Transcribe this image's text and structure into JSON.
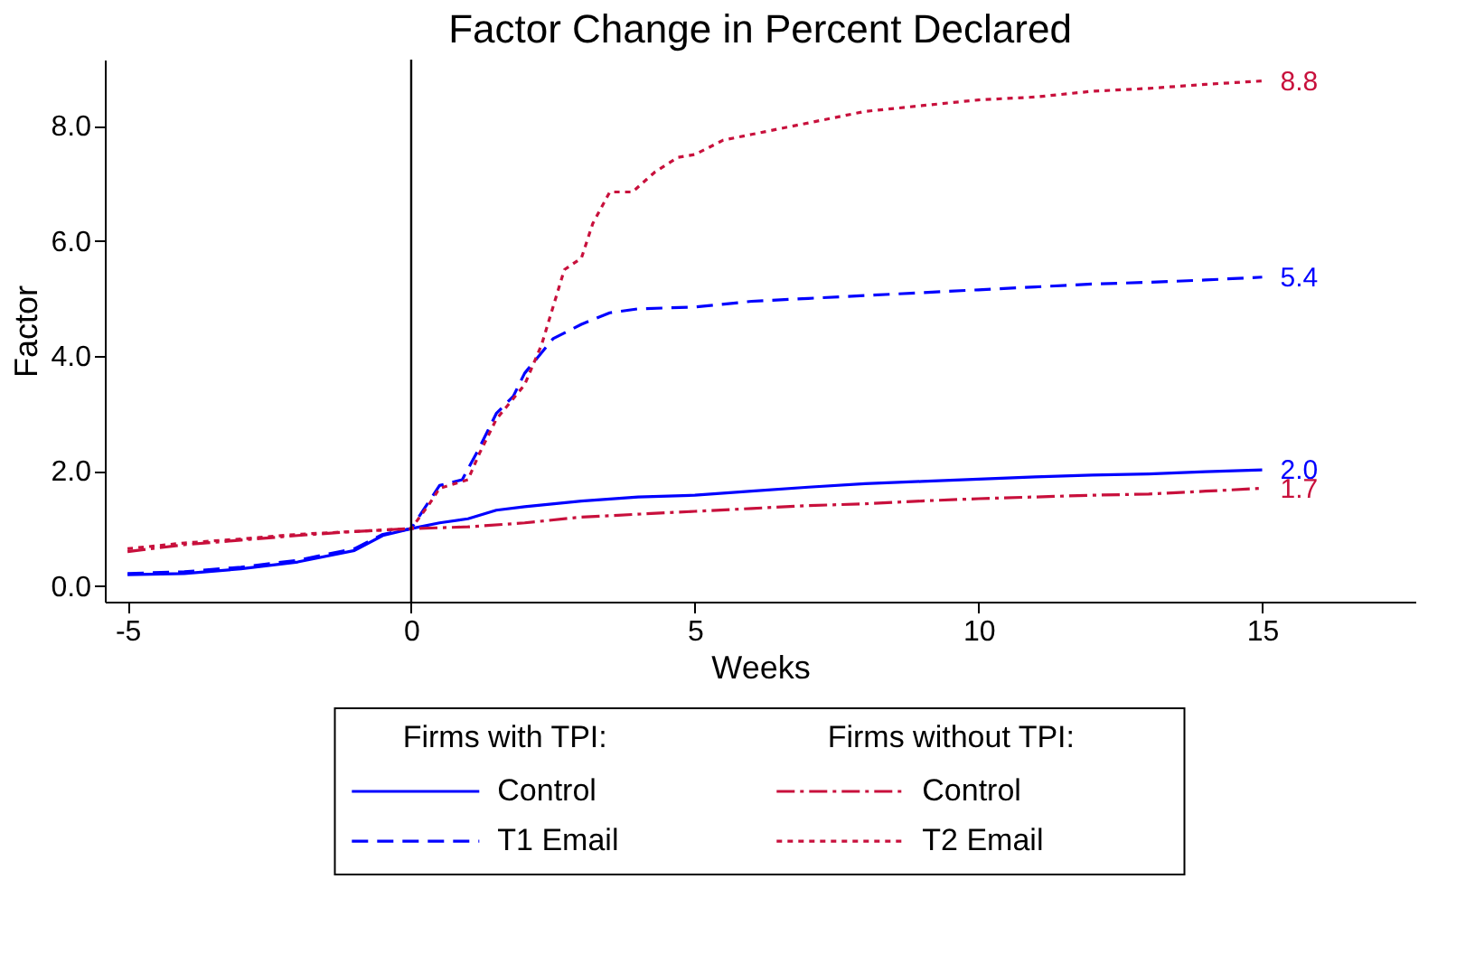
{
  "chart_data": {
    "type": "line",
    "title": "Factor Change in Percent Declared",
    "xlabel": "Weeks",
    "ylabel": "Factor",
    "xlim": [
      -5.4,
      17.7
    ],
    "ylim": [
      -0.27,
      9.15
    ],
    "xticks": [
      -5,
      0,
      5,
      10,
      15
    ],
    "yticks": [
      {
        "value": 0,
        "label": "0.0"
      },
      {
        "value": 2,
        "label": "2.0"
      },
      {
        "value": 4,
        "label": "4.0"
      },
      {
        "value": 6,
        "label": "6.0"
      },
      {
        "value": 8,
        "label": "8.0"
      }
    ],
    "grid": false,
    "legend": "bottom",
    "annotations": [
      "Firms with TPI:",
      "Firms without TPI:"
    ],
    "ref_lines": [
      {
        "axis": "x",
        "value": 0,
        "label": null,
        "color": "#000000",
        "line_style": "solid"
      }
    ],
    "series": [
      {
        "name": "Control",
        "color": "#0000ff",
        "line_style": "solid",
        "x": [
          -5,
          -4,
          -3,
          -2,
          -1,
          -0.5,
          0,
          0.5,
          1,
          1.5,
          2,
          3,
          4,
          5,
          6,
          7,
          8,
          9,
          10,
          11,
          12,
          13,
          14,
          15
        ],
        "values": [
          0.2,
          0.22,
          0.3,
          0.42,
          0.62,
          0.88,
          1.0,
          1.1,
          1.17,
          1.32,
          1.38,
          1.48,
          1.55,
          1.58,
          1.65,
          1.72,
          1.78,
          1.82,
          1.86,
          1.9,
          1.93,
          1.95,
          1.99,
          2.02
        ],
        "value_labels": [
          null,
          null,
          null,
          null,
          null,
          null,
          null,
          null,
          null,
          null,
          null,
          null,
          null,
          null,
          null,
          null,
          null,
          null,
          null,
          null,
          null,
          null,
          null,
          "2.0"
        ]
      },
      {
        "name": "T1 Email",
        "color": "#0000ff",
        "line_style": "dashed",
        "x": [
          -5,
          -4,
          -3,
          -2,
          -1,
          -0.5,
          0,
          0.3,
          0.5,
          0.9,
          1.2,
          1.5,
          1.8,
          2.0,
          2.5,
          3,
          3.5,
          4,
          5,
          6,
          7,
          8,
          9,
          10,
          11,
          12,
          13,
          14,
          15
        ],
        "values": [
          0.22,
          0.25,
          0.33,
          0.45,
          0.65,
          0.9,
          1.0,
          1.45,
          1.75,
          1.85,
          2.4,
          3.0,
          3.3,
          3.7,
          4.3,
          4.55,
          4.75,
          4.82,
          4.85,
          4.95,
          5.0,
          5.05,
          5.1,
          5.15,
          5.2,
          5.25,
          5.28,
          5.32,
          5.37
        ],
        "value_labels": [
          null,
          null,
          null,
          null,
          null,
          null,
          null,
          null,
          null,
          null,
          null,
          null,
          null,
          null,
          null,
          null,
          null,
          null,
          null,
          null,
          null,
          null,
          null,
          null,
          null,
          null,
          null,
          null,
          "5.4"
        ]
      },
      {
        "name": "Control",
        "color": "#c8103c",
        "line_style": "dashdot",
        "x": [
          -5,
          -4,
          -3,
          -2,
          -1,
          0,
          1,
          2,
          3,
          4,
          5,
          6,
          7,
          8,
          9,
          10,
          11,
          12,
          13,
          14,
          15
        ],
        "values": [
          0.6,
          0.72,
          0.8,
          0.88,
          0.95,
          1.0,
          1.03,
          1.1,
          1.2,
          1.25,
          1.3,
          1.35,
          1.4,
          1.43,
          1.48,
          1.52,
          1.55,
          1.58,
          1.6,
          1.65,
          1.7
        ],
        "value_labels": [
          null,
          null,
          null,
          null,
          null,
          null,
          null,
          null,
          null,
          null,
          null,
          null,
          null,
          null,
          null,
          null,
          null,
          null,
          null,
          null,
          "1.7"
        ]
      },
      {
        "name": "T2 Email",
        "color": "#c8103c",
        "line_style": "dotted",
        "x": [
          -5,
          -4,
          -3,
          -2,
          -1,
          0,
          0.3,
          0.5,
          1,
          1.2,
          1.5,
          2,
          2.3,
          2.7,
          3,
          3.2,
          3.5,
          3.9,
          4.3,
          4.7,
          5,
          5.5,
          6,
          7,
          8,
          9,
          10,
          11,
          12,
          13,
          14,
          15
        ],
        "values": [
          0.65,
          0.75,
          0.82,
          0.9,
          0.95,
          1.0,
          1.4,
          1.7,
          1.85,
          2.3,
          2.9,
          3.5,
          4.2,
          5.5,
          5.7,
          6.3,
          6.85,
          6.85,
          7.2,
          7.45,
          7.5,
          7.75,
          7.85,
          8.05,
          8.25,
          8.35,
          8.45,
          8.5,
          8.6,
          8.65,
          8.72,
          8.78
        ],
        "value_labels": [
          null,
          null,
          null,
          null,
          null,
          null,
          null,
          null,
          null,
          null,
          null,
          null,
          null,
          null,
          null,
          null,
          null,
          null,
          null,
          null,
          null,
          null,
          null,
          null,
          null,
          null,
          null,
          null,
          null,
          null,
          null,
          "8.8"
        ]
      }
    ]
  }
}
